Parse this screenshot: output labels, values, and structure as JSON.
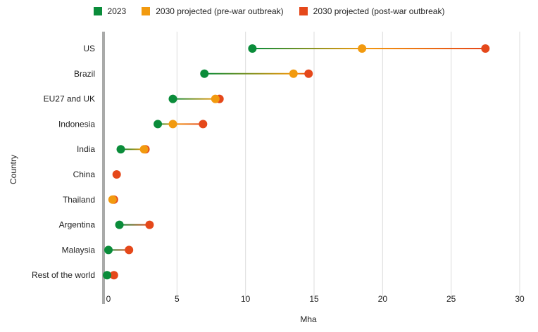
{
  "chart_data": {
    "type": "dumbbell",
    "xlabel": "Mha",
    "ylabel": "Country",
    "xlim": [
      0,
      30
    ],
    "xticks": [
      0,
      5,
      10,
      15,
      20,
      25,
      30
    ],
    "grid": "vertical",
    "legend_position": "top",
    "categories": [
      "US",
      "Brazil",
      "EU27 and UK",
      "Indonesia",
      "India",
      "China",
      "Thailand",
      "Argentina",
      "Malaysia",
      "Rest of the world"
    ],
    "series": [
      {
        "name": "2023",
        "color": "#0a8c3a",
        "values": [
          10.5,
          7.0,
          4.7,
          3.6,
          0.9,
          null,
          null,
          0.8,
          0.0,
          -0.1
        ]
      },
      {
        "name": "2030 projected (pre-war outbreak)",
        "color": "#f29a0f",
        "values": [
          18.5,
          13.5,
          7.8,
          4.7,
          2.6,
          null,
          0.3,
          null,
          null,
          null
        ]
      },
      {
        "name": "2030 projected (post-war outbreak)",
        "color": "#e5481a",
        "values": [
          27.5,
          14.6,
          8.1,
          6.9,
          2.7,
          0.6,
          0.4,
          3.0,
          1.5,
          0.4
        ]
      }
    ]
  }
}
